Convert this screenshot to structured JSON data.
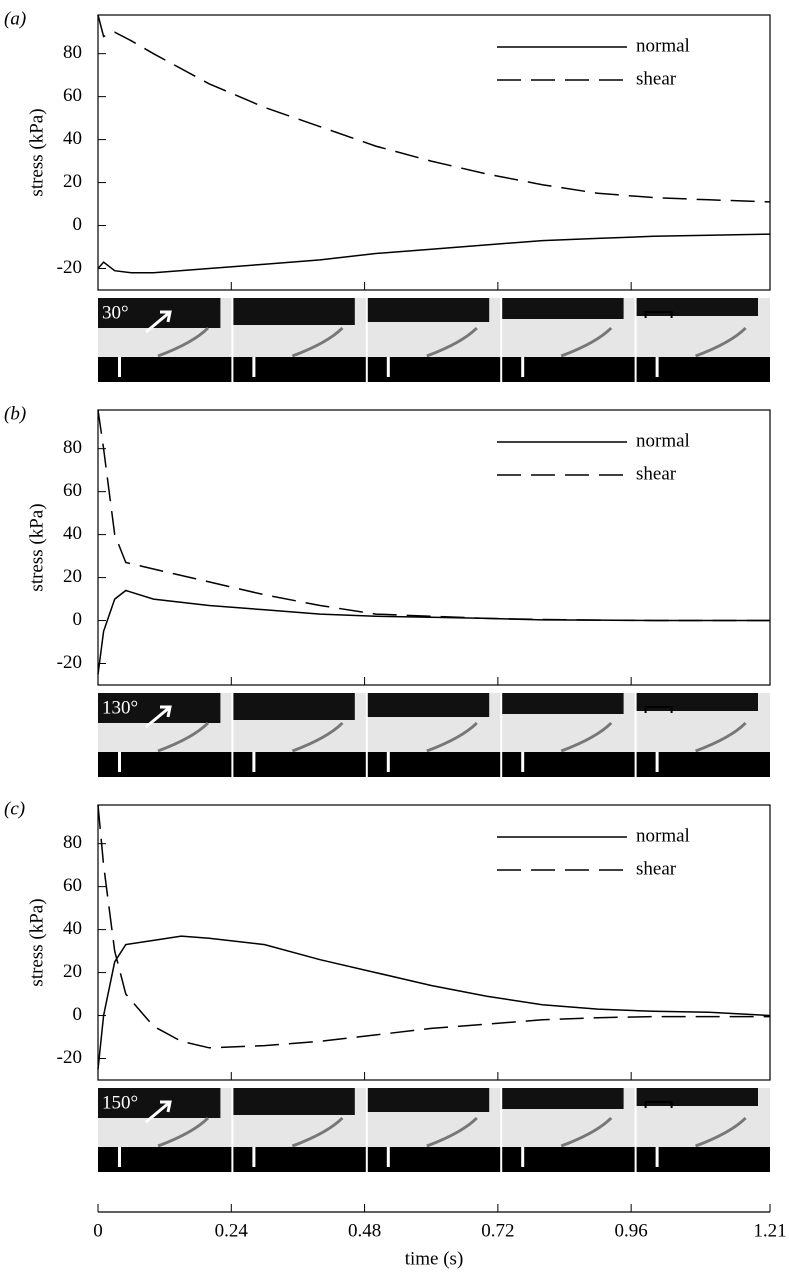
{
  "chart_data": [
    {
      "type": "line",
      "panel_label": "(a)",
      "angle_label": "30°",
      "ylabel": "stress (kPa)",
      "xlim": [
        0,
        1.21
      ],
      "ylim": [
        -30,
        98
      ],
      "yticks": [
        -20,
        0,
        20,
        40,
        60,
        80
      ],
      "legend": "upper right",
      "x": [
        0,
        0.01,
        0.03,
        0.06,
        0.1,
        0.2,
        0.3,
        0.4,
        0.5,
        0.6,
        0.7,
        0.8,
        0.9,
        1.0,
        1.1,
        1.21
      ],
      "series": [
        {
          "name": "normal",
          "color": "#000000",
          "dash": false,
          "values": [
            -20,
            -17,
            -21,
            -22,
            -22,
            -20,
            -18,
            -16,
            -13,
            -11,
            -9,
            -7,
            -6,
            -5,
            -4.5,
            -4
          ]
        },
        {
          "name": "shear",
          "color": "#000000",
          "dash": true,
          "values": [
            98,
            88,
            90,
            86,
            80,
            66,
            55,
            46,
            37,
            30,
            24,
            19,
            15,
            13,
            12,
            11
          ]
        }
      ]
    },
    {
      "type": "line",
      "panel_label": "(b)",
      "angle_label": "130°",
      "ylabel": "stress (kPa)",
      "xlim": [
        0,
        1.21
      ],
      "ylim": [
        -30,
        98
      ],
      "yticks": [
        -20,
        0,
        20,
        40,
        60,
        80
      ],
      "legend": "upper right",
      "x": [
        0,
        0.01,
        0.03,
        0.05,
        0.1,
        0.2,
        0.3,
        0.4,
        0.5,
        0.6,
        0.7,
        0.8,
        0.9,
        1.0,
        1.1,
        1.21
      ],
      "series": [
        {
          "name": "normal",
          "color": "#000000",
          "dash": false,
          "values": [
            -25,
            -5,
            10,
            14,
            10,
            7,
            5,
            3,
            2,
            1.5,
            1,
            0.3,
            0.2,
            0,
            0,
            0
          ]
        },
        {
          "name": "shear",
          "color": "#000000",
          "dash": true,
          "values": [
            98,
            80,
            40,
            27,
            24,
            18,
            12,
            7,
            3,
            2,
            1,
            0.5,
            0.2,
            0,
            0,
            0
          ]
        }
      ]
    },
    {
      "type": "line",
      "panel_label": "(c)",
      "angle_label": "150°",
      "ylabel": "stress (kPa)",
      "xlabel": "time (s)",
      "xlim": [
        0,
        1.21
      ],
      "xticks": [
        0,
        0.24,
        0.48,
        0.72,
        0.96,
        1.21
      ],
      "ylim": [
        -30,
        98
      ],
      "yticks": [
        -20,
        0,
        20,
        40,
        60,
        80
      ],
      "legend": "upper right",
      "x": [
        0,
        0.01,
        0.03,
        0.05,
        0.1,
        0.15,
        0.2,
        0.3,
        0.4,
        0.5,
        0.6,
        0.7,
        0.8,
        0.9,
        1.0,
        1.1,
        1.21
      ],
      "series": [
        {
          "name": "normal",
          "color": "#000000",
          "dash": false,
          "values": [
            -25,
            0,
            25,
            33,
            35,
            37,
            36,
            33,
            26,
            20,
            14,
            9,
            5,
            3,
            2,
            1.5,
            0
          ]
        },
        {
          "name": "shear",
          "color": "#000000",
          "dash": true,
          "values": [
            98,
            70,
            30,
            10,
            -5,
            -12,
            -15,
            -14,
            -12,
            -9,
            -6,
            -4,
            -2,
            -1,
            -0.5,
            -0.5,
            -0.5
          ]
        }
      ]
    }
  ]
}
